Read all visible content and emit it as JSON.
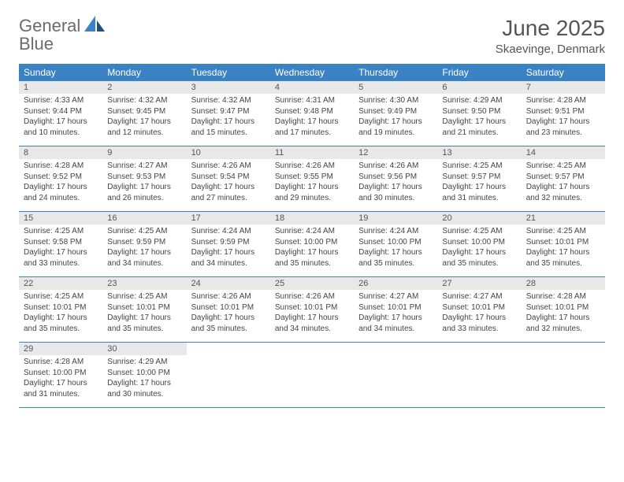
{
  "logo": {
    "text1": "General",
    "text2": "Blue"
  },
  "header": {
    "month": "June 2025",
    "location": "Skaevinge, Denmark"
  },
  "colors": {
    "accent": "#3b82c4",
    "header_bg": "#3b82c4",
    "daynum_bg": "#e8e8e8",
    "text": "#444444",
    "title": "#555555"
  },
  "weekdays": [
    "Sunday",
    "Monday",
    "Tuesday",
    "Wednesday",
    "Thursday",
    "Friday",
    "Saturday"
  ],
  "days": [
    {
      "n": 1,
      "sunrise": "4:33 AM",
      "sunset": "9:44 PM",
      "daylight": "17 hours and 10 minutes."
    },
    {
      "n": 2,
      "sunrise": "4:32 AM",
      "sunset": "9:45 PM",
      "daylight": "17 hours and 12 minutes."
    },
    {
      "n": 3,
      "sunrise": "4:32 AM",
      "sunset": "9:47 PM",
      "daylight": "17 hours and 15 minutes."
    },
    {
      "n": 4,
      "sunrise": "4:31 AM",
      "sunset": "9:48 PM",
      "daylight": "17 hours and 17 minutes."
    },
    {
      "n": 5,
      "sunrise": "4:30 AM",
      "sunset": "9:49 PM",
      "daylight": "17 hours and 19 minutes."
    },
    {
      "n": 6,
      "sunrise": "4:29 AM",
      "sunset": "9:50 PM",
      "daylight": "17 hours and 21 minutes."
    },
    {
      "n": 7,
      "sunrise": "4:28 AM",
      "sunset": "9:51 PM",
      "daylight": "17 hours and 23 minutes."
    },
    {
      "n": 8,
      "sunrise": "4:28 AM",
      "sunset": "9:52 PM",
      "daylight": "17 hours and 24 minutes."
    },
    {
      "n": 9,
      "sunrise": "4:27 AM",
      "sunset": "9:53 PM",
      "daylight": "17 hours and 26 minutes."
    },
    {
      "n": 10,
      "sunrise": "4:26 AM",
      "sunset": "9:54 PM",
      "daylight": "17 hours and 27 minutes."
    },
    {
      "n": 11,
      "sunrise": "4:26 AM",
      "sunset": "9:55 PM",
      "daylight": "17 hours and 29 minutes."
    },
    {
      "n": 12,
      "sunrise": "4:26 AM",
      "sunset": "9:56 PM",
      "daylight": "17 hours and 30 minutes."
    },
    {
      "n": 13,
      "sunrise": "4:25 AM",
      "sunset": "9:57 PM",
      "daylight": "17 hours and 31 minutes."
    },
    {
      "n": 14,
      "sunrise": "4:25 AM",
      "sunset": "9:57 PM",
      "daylight": "17 hours and 32 minutes."
    },
    {
      "n": 15,
      "sunrise": "4:25 AM",
      "sunset": "9:58 PM",
      "daylight": "17 hours and 33 minutes."
    },
    {
      "n": 16,
      "sunrise": "4:25 AM",
      "sunset": "9:59 PM",
      "daylight": "17 hours and 34 minutes."
    },
    {
      "n": 17,
      "sunrise": "4:24 AM",
      "sunset": "9:59 PM",
      "daylight": "17 hours and 34 minutes."
    },
    {
      "n": 18,
      "sunrise": "4:24 AM",
      "sunset": "10:00 PM",
      "daylight": "17 hours and 35 minutes."
    },
    {
      "n": 19,
      "sunrise": "4:24 AM",
      "sunset": "10:00 PM",
      "daylight": "17 hours and 35 minutes."
    },
    {
      "n": 20,
      "sunrise": "4:25 AM",
      "sunset": "10:00 PM",
      "daylight": "17 hours and 35 minutes."
    },
    {
      "n": 21,
      "sunrise": "4:25 AM",
      "sunset": "10:01 PM",
      "daylight": "17 hours and 35 minutes."
    },
    {
      "n": 22,
      "sunrise": "4:25 AM",
      "sunset": "10:01 PM",
      "daylight": "17 hours and 35 minutes."
    },
    {
      "n": 23,
      "sunrise": "4:25 AM",
      "sunset": "10:01 PM",
      "daylight": "17 hours and 35 minutes."
    },
    {
      "n": 24,
      "sunrise": "4:26 AM",
      "sunset": "10:01 PM",
      "daylight": "17 hours and 35 minutes."
    },
    {
      "n": 25,
      "sunrise": "4:26 AM",
      "sunset": "10:01 PM",
      "daylight": "17 hours and 34 minutes."
    },
    {
      "n": 26,
      "sunrise": "4:27 AM",
      "sunset": "10:01 PM",
      "daylight": "17 hours and 34 minutes."
    },
    {
      "n": 27,
      "sunrise": "4:27 AM",
      "sunset": "10:01 PM",
      "daylight": "17 hours and 33 minutes."
    },
    {
      "n": 28,
      "sunrise": "4:28 AM",
      "sunset": "10:01 PM",
      "daylight": "17 hours and 32 minutes."
    },
    {
      "n": 29,
      "sunrise": "4:28 AM",
      "sunset": "10:00 PM",
      "daylight": "17 hours and 31 minutes."
    },
    {
      "n": 30,
      "sunrise": "4:29 AM",
      "sunset": "10:00 PM",
      "daylight": "17 hours and 30 minutes."
    }
  ],
  "labels": {
    "sunrise": "Sunrise:",
    "sunset": "Sunset:",
    "daylight": "Daylight:"
  },
  "layout": {
    "first_weekday_index": 0,
    "total_cells": 35
  }
}
